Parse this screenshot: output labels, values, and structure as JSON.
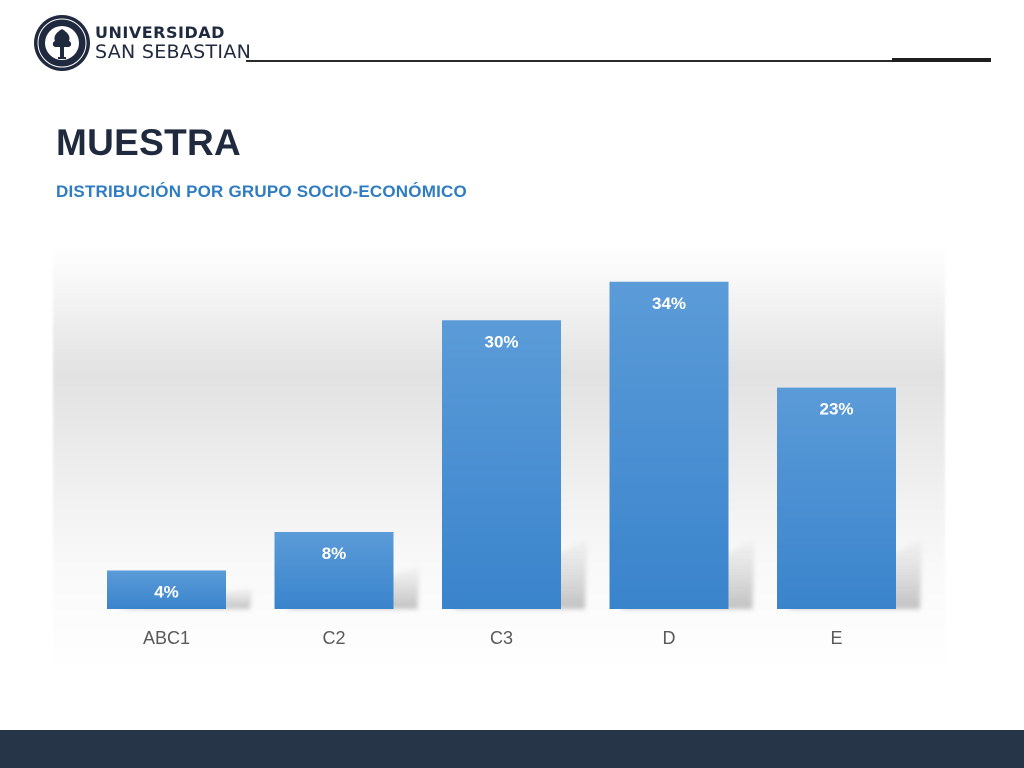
{
  "header": {
    "logo_line1": "UNIVERSIDAD",
    "logo_line2": "SAN SEBASTIAN",
    "logo_icon": "university-seal-icon"
  },
  "slide": {
    "title": "MUESTRA",
    "subtitle": "DISTRIBUCIÓN POR GRUPO SOCIO-ECONÓMICO"
  },
  "colors": {
    "title": "#1f2a3f",
    "subtitle": "#2f7cc2",
    "bar": "#4a90d5",
    "footer": "#273548"
  },
  "chart_data": {
    "type": "bar",
    "categories": [
      "ABC1",
      "C2",
      "C3",
      "D",
      "E"
    ],
    "values": [
      4,
      8,
      30,
      34,
      23
    ],
    "data_labels": [
      "4%",
      "8%",
      "30%",
      "34%",
      "23%"
    ],
    "unit": "%",
    "ylim": [
      0,
      40
    ],
    "grid": false,
    "legend": "none"
  }
}
